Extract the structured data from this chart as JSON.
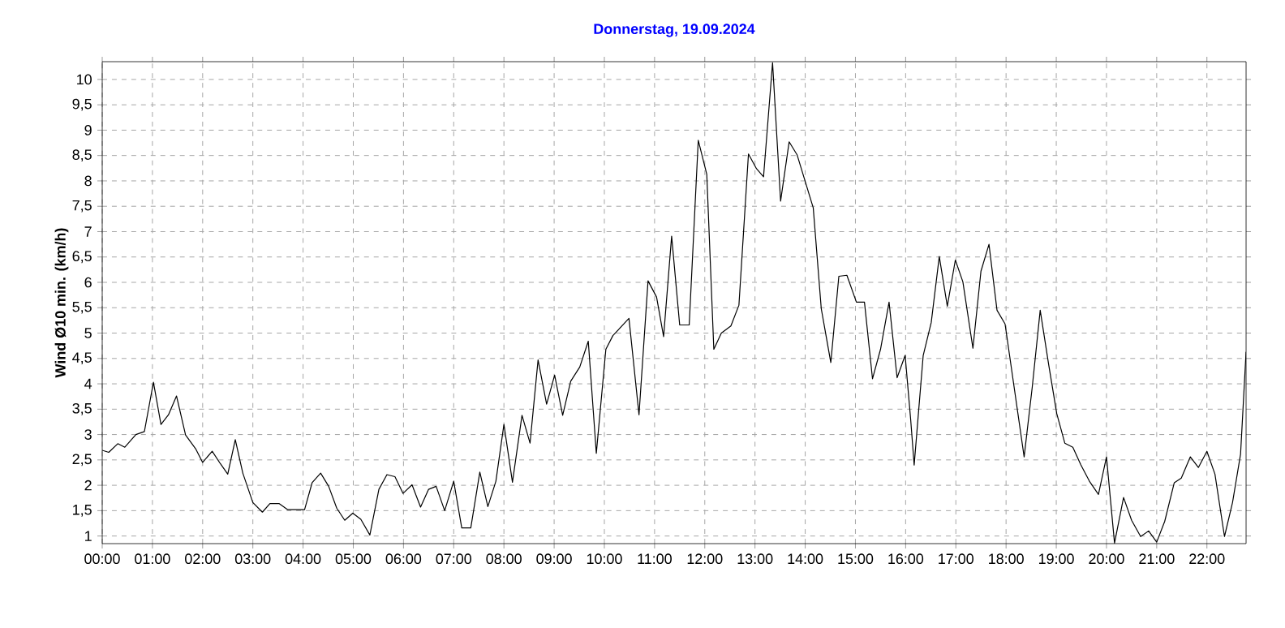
{
  "chart_data": {
    "type": "line",
    "title": "Donnerstag, 19.09.2024",
    "ylabel": "Wind Ø10 min.  (km/h)",
    "x": [
      0,
      0.13,
      0.31,
      0.45,
      0.67,
      0.84,
      1.02,
      1.17,
      1.32,
      1.48,
      1.66,
      1.86,
      2.0,
      2.19,
      2.35,
      2.5,
      2.65,
      2.8,
      3.0,
      3.19,
      3.34,
      3.52,
      3.69,
      4.03,
      4.18,
      4.35,
      4.51,
      4.67,
      4.83,
      4.99,
      5.15,
      5.33,
      5.51,
      5.67,
      5.83,
      5.99,
      6.17,
      6.34,
      6.5,
      6.65,
      6.82,
      7.0,
      7.16,
      7.34,
      7.52,
      7.68,
      7.84,
      8.0,
      8.17,
      8.36,
      8.52,
      8.68,
      8.85,
      9.01,
      9.17,
      9.33,
      9.51,
      9.68,
      9.84,
      10.03,
      10.17,
      10.49,
      10.69,
      10.87,
      11.04,
      11.18,
      11.34,
      11.5,
      11.69,
      11.87,
      12.04,
      12.18,
      12.33,
      12.52,
      12.68,
      12.87,
      13.03,
      13.17,
      13.35,
      13.51,
      13.68,
      13.84,
      14.16,
      14.32,
      14.51,
      14.67,
      14.83,
      15.02,
      15.18,
      15.34,
      15.5,
      15.67,
      15.83,
      15.99,
      16.1,
      16.17,
      16.35,
      16.51,
      16.67,
      16.83,
      16.99,
      17.14,
      17.34,
      17.5,
      17.66,
      17.82,
      17.98,
      18.36,
      18.52,
      18.68,
      18.85,
      19.01,
      19.17,
      19.33,
      19.49,
      19.66,
      19.84,
      20.0,
      20.16,
      20.34,
      20.5,
      20.68,
      20.84,
      21.0,
      21.16,
      21.35,
      21.49,
      21.67,
      21.83,
      22.0,
      22.16,
      22.35,
      22.51,
      22.67,
      22.78
    ],
    "series": [
      {
        "color": "#000000",
        "values": [
          2.69,
          2.65,
          2.82,
          2.75,
          3.0,
          3.06,
          4.03,
          3.2,
          3.39,
          3.76,
          2.99,
          2.72,
          2.45,
          2.67,
          2.43,
          2.22,
          2.9,
          2.24,
          1.66,
          1.47,
          1.64,
          1.64,
          1.52,
          1.52,
          2.05,
          2.24,
          1.98,
          1.55,
          1.31,
          1.45,
          1.33,
          1.02,
          1.92,
          2.21,
          2.17,
          1.84,
          2.01,
          1.57,
          1.92,
          1.98,
          1.5,
          2.08,
          1.16,
          1.16,
          2.26,
          1.58,
          2.08,
          3.2,
          2.06,
          3.38,
          2.83,
          4.47,
          3.6,
          4.17,
          3.38,
          4.05,
          4.33,
          4.84,
          2.63,
          4.68,
          4.95,
          5.29,
          3.39,
          6.03,
          5.71,
          4.93,
          6.91,
          5.16,
          5.16,
          8.8,
          8.13,
          4.68,
          5.0,
          5.14,
          5.55,
          8.53,
          8.24,
          8.08,
          10.33,
          7.6,
          8.77,
          8.51,
          7.47,
          5.48,
          4.42,
          6.12,
          6.14,
          5.61,
          5.61,
          4.1,
          4.68,
          5.61,
          4.12,
          4.56,
          3.3,
          2.4,
          4.56,
          5.21,
          6.51,
          5.53,
          6.44,
          6.01,
          4.7,
          6.22,
          6.75,
          5.45,
          5.18,
          2.56,
          3.92,
          5.45,
          4.37,
          3.41,
          2.83,
          2.75,
          2.4,
          2.08,
          1.82,
          2.56,
          0.86,
          1.76,
          1.31,
          0.99,
          1.1,
          0.88,
          1.29,
          2.05,
          2.14,
          2.56,
          2.35,
          2.67,
          2.22,
          0.99,
          1.66,
          2.61,
          4.63
        ]
      }
    ],
    "xlim": [
      0,
      22.78
    ],
    "ylim": [
      0.85,
      10.35
    ],
    "xticks": [
      {
        "value": 0,
        "label": "00:00"
      },
      {
        "value": 1,
        "label": "01:00"
      },
      {
        "value": 2,
        "label": "02:00"
      },
      {
        "value": 3,
        "label": "03:00"
      },
      {
        "value": 4,
        "label": "04:00"
      },
      {
        "value": 5,
        "label": "05:00"
      },
      {
        "value": 6,
        "label": "06:00"
      },
      {
        "value": 7,
        "label": "07:00"
      },
      {
        "value": 8,
        "label": "08:00"
      },
      {
        "value": 9,
        "label": "09:00"
      },
      {
        "value": 10,
        "label": "10:00"
      },
      {
        "value": 11,
        "label": "11:00"
      },
      {
        "value": 12,
        "label": "12:00"
      },
      {
        "value": 13,
        "label": "13:00"
      },
      {
        "value": 14,
        "label": "14:00"
      },
      {
        "value": 15,
        "label": "15:00"
      },
      {
        "value": 16,
        "label": "16:00"
      },
      {
        "value": 17,
        "label": "17:00"
      },
      {
        "value": 18,
        "label": "18:00"
      },
      {
        "value": 19,
        "label": "19:00"
      },
      {
        "value": 20,
        "label": "20:00"
      },
      {
        "value": 21,
        "label": "21:00"
      },
      {
        "value": 22,
        "label": "22:00"
      }
    ],
    "yticks": [
      1,
      {
        "value": 1.5,
        "label": "1,5"
      },
      2,
      {
        "value": 2.5,
        "label": "2,5"
      },
      3,
      {
        "value": 3.5,
        "label": "3,5"
      },
      4,
      {
        "value": 4.5,
        "label": "4,5"
      },
      5,
      {
        "value": 5.5,
        "label": "5,5"
      },
      6,
      {
        "value": 6.5,
        "label": "6,5"
      },
      7,
      {
        "value": 7.5,
        "label": "7,5"
      },
      8,
      {
        "value": 8.5,
        "label": "8,5"
      },
      9,
      {
        "value": 9.5,
        "label": "9,5"
      },
      10
    ],
    "grid": true,
    "marker": "none",
    "line_style": "solid"
  }
}
